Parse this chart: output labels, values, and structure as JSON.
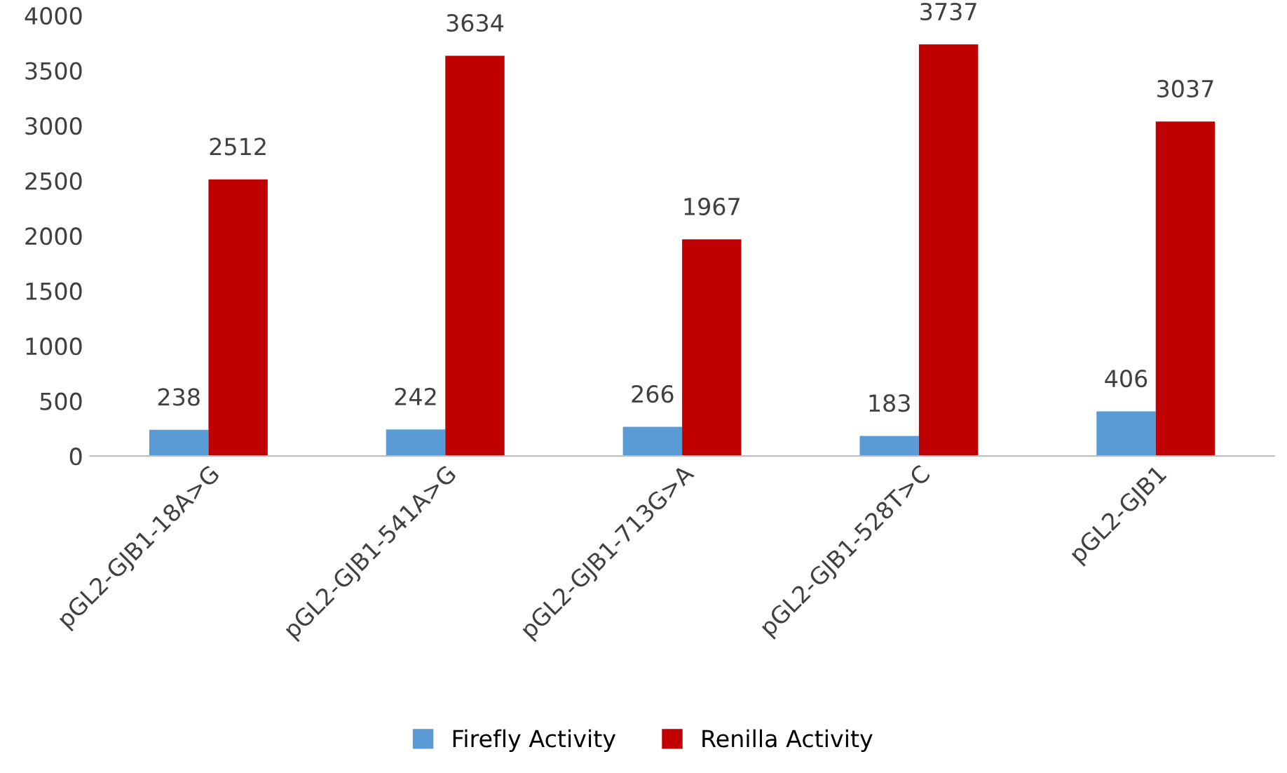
{
  "chart_data": {
    "type": "bar",
    "categories": [
      "pGL2-GJB1-18A>G",
      "pGL2-GJB1-541A>G",
      "pGL2-GJB1-713G>A",
      "pGL2-GJB1-528T>C",
      "pGL2-GJB1"
    ],
    "series": [
      {
        "name": "Firefly Activity",
        "color": "#5b9bd5",
        "values": [
          238,
          242,
          266,
          183,
          406
        ]
      },
      {
        "name": "Renilla Activity",
        "color": "#c00000",
        "values": [
          2512,
          3634,
          1967,
          3737,
          3037
        ]
      }
    ],
    "ylim": [
      0,
      4000
    ],
    "yticks": [
      0,
      500,
      1000,
      1500,
      2000,
      2500,
      3000,
      3500,
      4000
    ],
    "grid": false,
    "legend": "bottom",
    "data_labels": true
  }
}
